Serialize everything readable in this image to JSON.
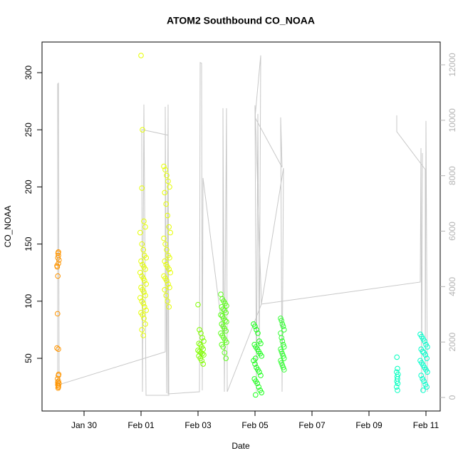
{
  "chart_data": {
    "type": "scatter",
    "title": "ATOM2 Southbound CO_NOAA",
    "x_label": "Date",
    "y_label": "CO_NOAA",
    "xlim": [
      28.525,
      42.5
    ],
    "xticks": [
      {
        "value": 30,
        "label": "Jan 30"
      },
      {
        "value": 32,
        "label": "Feb 01"
      },
      {
        "value": 34,
        "label": "Feb 03"
      },
      {
        "value": 36,
        "label": "Feb 05"
      },
      {
        "value": 38,
        "label": "Feb 07"
      },
      {
        "value": 40,
        "label": "Feb 09"
      },
      {
        "value": 42,
        "label": "Feb 11"
      }
    ],
    "ylim": [
      3.9,
      326.8
    ],
    "yticks": [
      50,
      100,
      150,
      200,
      250,
      300
    ],
    "y2lim": [
      -488,
      12822
    ],
    "y2ticks": [
      0,
      2000,
      4000,
      6000,
      8000,
      10000,
      12000
    ],
    "series": [
      {
        "type": "line",
        "axis": "y2",
        "color": "#c8c8c8",
        "x": [
          29.075,
          29.075,
          29.1,
          29.125,
          32.85,
          32.85,
          32.9,
          32.95,
          32.975,
          32.175,
          32.1,
          32.05,
          32.025,
          32.95,
          32.95,
          34.05,
          34.075,
          34.125,
          34.15,
          34.175,
          34.875,
          34.875,
          34.925,
          35.0,
          35.025,
          36.225,
          36.0,
          36.05,
          36.1,
          36.15,
          36.2,
          36.0,
          36.95,
          36.9,
          36.95,
          37.0,
          36.225,
          41.8,
          41.825,
          41.85,
          41.875,
          41.9,
          40.975,
          40.975,
          41.975,
          41.975,
          42.0,
          42.05
        ],
        "values": [
          463,
          11311,
          11337,
          463,
          1645,
          10488,
          154,
          10566,
          77,
          77,
          10566,
          206,
          9666,
          9460,
          129,
          206,
          12082,
          12057,
          257,
          7918,
          2262,
          10437,
          206,
          10437,
          206,
          3368,
          10540,
          206,
          10231,
          1491,
          12339,
          10103,
          8303,
          10103,
          206,
          8277,
          3368,
          4164,
          8998,
          206,
          8818,
          null,
          10180,
          9589,
          8226,
          206,
          9975,
          206
        ]
      },
      {
        "color": "#ff9500",
        "x": [
          29.1,
          29.08,
          29.12,
          29.1,
          29.07,
          29.1,
          29.11,
          29.09,
          29.1,
          29.08,
          29.05,
          29.1,
          29.07,
          29.08,
          29.05,
          29.1,
          29.12,
          29.08,
          29.1,
          29.1,
          29.09,
          29.06
        ],
        "values": [
          25,
          27,
          28,
          30,
          32,
          35,
          36,
          24,
          26,
          29,
          59,
          58,
          89,
          122,
          131,
          133,
          136,
          138,
          140,
          143,
          142,
          130
        ]
      },
      {
        "color": "#e6ff00",
        "x": [
          32.0,
          32.05,
          32.03,
          32.1,
          32.15,
          31.97,
          32.03,
          32.08,
          32.12,
          32.18,
          32.0,
          32.05,
          32.1,
          32.15,
          31.97,
          32.03,
          32.08,
          32.12,
          32.18,
          32.0,
          32.05,
          32.1,
          32.15,
          31.97,
          32.03,
          32.08,
          32.12,
          32.18,
          32.0,
          32.05,
          32.1,
          32.15,
          32.03,
          32.08
        ],
        "values": [
          315,
          250,
          199,
          170,
          165,
          160,
          150,
          145,
          140,
          138,
          135,
          132,
          130,
          128,
          125,
          122,
          120,
          118,
          115,
          112,
          110,
          108,
          105,
          103,
          100,
          98,
          95,
          92,
          90,
          88,
          85,
          80,
          75,
          70
        ]
      },
      {
        "color": "#e6ff00",
        "x": [
          32.8,
          32.85,
          32.9,
          32.95,
          33.0,
          32.83,
          32.88,
          32.93,
          32.98,
          33.03,
          32.8,
          32.85,
          32.9,
          32.95,
          33.0,
          32.83,
          32.88,
          32.93,
          32.98,
          33.03,
          32.8,
          32.85,
          32.9,
          32.95,
          33.0,
          32.83,
          32.88,
          32.93,
          32.98
        ],
        "values": [
          218,
          215,
          210,
          205,
          200,
          195,
          185,
          175,
          165,
          160,
          155,
          150,
          145,
          140,
          138,
          135,
          132,
          130,
          128,
          125,
          122,
          120,
          118,
          115,
          112,
          110,
          105,
          100,
          95
        ]
      },
      {
        "color": "#80ff00",
        "x": [
          34.0,
          34.05,
          34.1,
          34.15,
          34.2,
          34.03,
          34.08,
          34.13,
          34.18,
          34.0,
          34.05,
          34.1,
          34.15,
          34.2,
          34.03,
          34.08,
          34.13,
          34.18
        ],
        "values": [
          97,
          75,
          72,
          68,
          65,
          63,
          62,
          60,
          58,
          57,
          56,
          55,
          54,
          53,
          52,
          50,
          48,
          45
        ]
      },
      {
        "color": "#5cff1a",
        "x": [
          34.8,
          34.85,
          34.9,
          34.95,
          35.0,
          34.83,
          34.88,
          34.93,
          34.98,
          34.8,
          34.85,
          34.9,
          34.95,
          35.0,
          34.83,
          34.88,
          34.93,
          34.98,
          34.8,
          34.85,
          34.9,
          34.95,
          35.0,
          34.83,
          34.88,
          34.93,
          34.98
        ],
        "values": [
          106,
          102,
          100,
          98,
          96,
          95,
          93,
          92,
          90,
          88,
          87,
          85,
          83,
          82,
          80,
          78,
          76,
          74,
          72,
          70,
          68,
          66,
          64,
          62,
          60,
          55,
          50
        ]
      },
      {
        "color": "#1aff1a",
        "x": [
          35.95,
          36.0,
          36.05,
          36.1,
          36.15,
          36.2,
          35.98,
          36.03,
          36.08,
          36.13,
          36.18,
          36.23,
          36.02,
          35.95,
          36.0,
          36.05,
          36.1,
          36.15,
          36.2,
          35.98,
          36.03,
          36.08,
          36.13,
          36.18,
          36.23,
          36.02
        ],
        "values": [
          80,
          78,
          75,
          72,
          65,
          63,
          62,
          60,
          58,
          56,
          54,
          52,
          50,
          48,
          45,
          42,
          40,
          38,
          35,
          32,
          30,
          28,
          25,
          22,
          20,
          18
        ]
      },
      {
        "color": "#33ff33",
        "x": [
          36.9,
          36.93,
          36.96,
          36.99,
          37.02,
          36.9,
          36.93,
          36.96,
          36.99,
          37.02,
          36.9,
          36.93,
          36.96,
          36.99,
          37.02,
          36.9,
          36.93,
          36.96,
          36.99,
          37.02
        ],
        "values": [
          85,
          83,
          80,
          78,
          75,
          72,
          68,
          65,
          62,
          60,
          58,
          56,
          54,
          52,
          50,
          48,
          46,
          44,
          42,
          40
        ]
      },
      {
        "color": "#00ffbf",
        "x": [
          40.98,
          41.0,
          40.97,
          41.02,
          40.99,
          41.0,
          40.98,
          41.01,
          40.97,
          41.0
        ],
        "values": [
          51,
          41,
          38,
          36,
          34,
          32,
          30,
          28,
          25,
          22
        ]
      },
      {
        "color": "#00ffcc",
        "x": [
          41.8,
          41.85,
          41.9,
          41.95,
          42.0,
          42.05,
          41.83,
          41.88,
          41.93,
          41.98,
          42.03,
          41.8,
          41.85,
          41.9,
          41.95,
          42.0,
          42.05,
          41.83,
          41.88,
          41.93,
          41.98,
          42.03,
          41.9
        ],
        "values": [
          71,
          69,
          67,
          65,
          62,
          60,
          58,
          56,
          55,
          53,
          50,
          48,
          46,
          44,
          42,
          40,
          38,
          35,
          32,
          30,
          27,
          25,
          22
        ]
      }
    ]
  }
}
